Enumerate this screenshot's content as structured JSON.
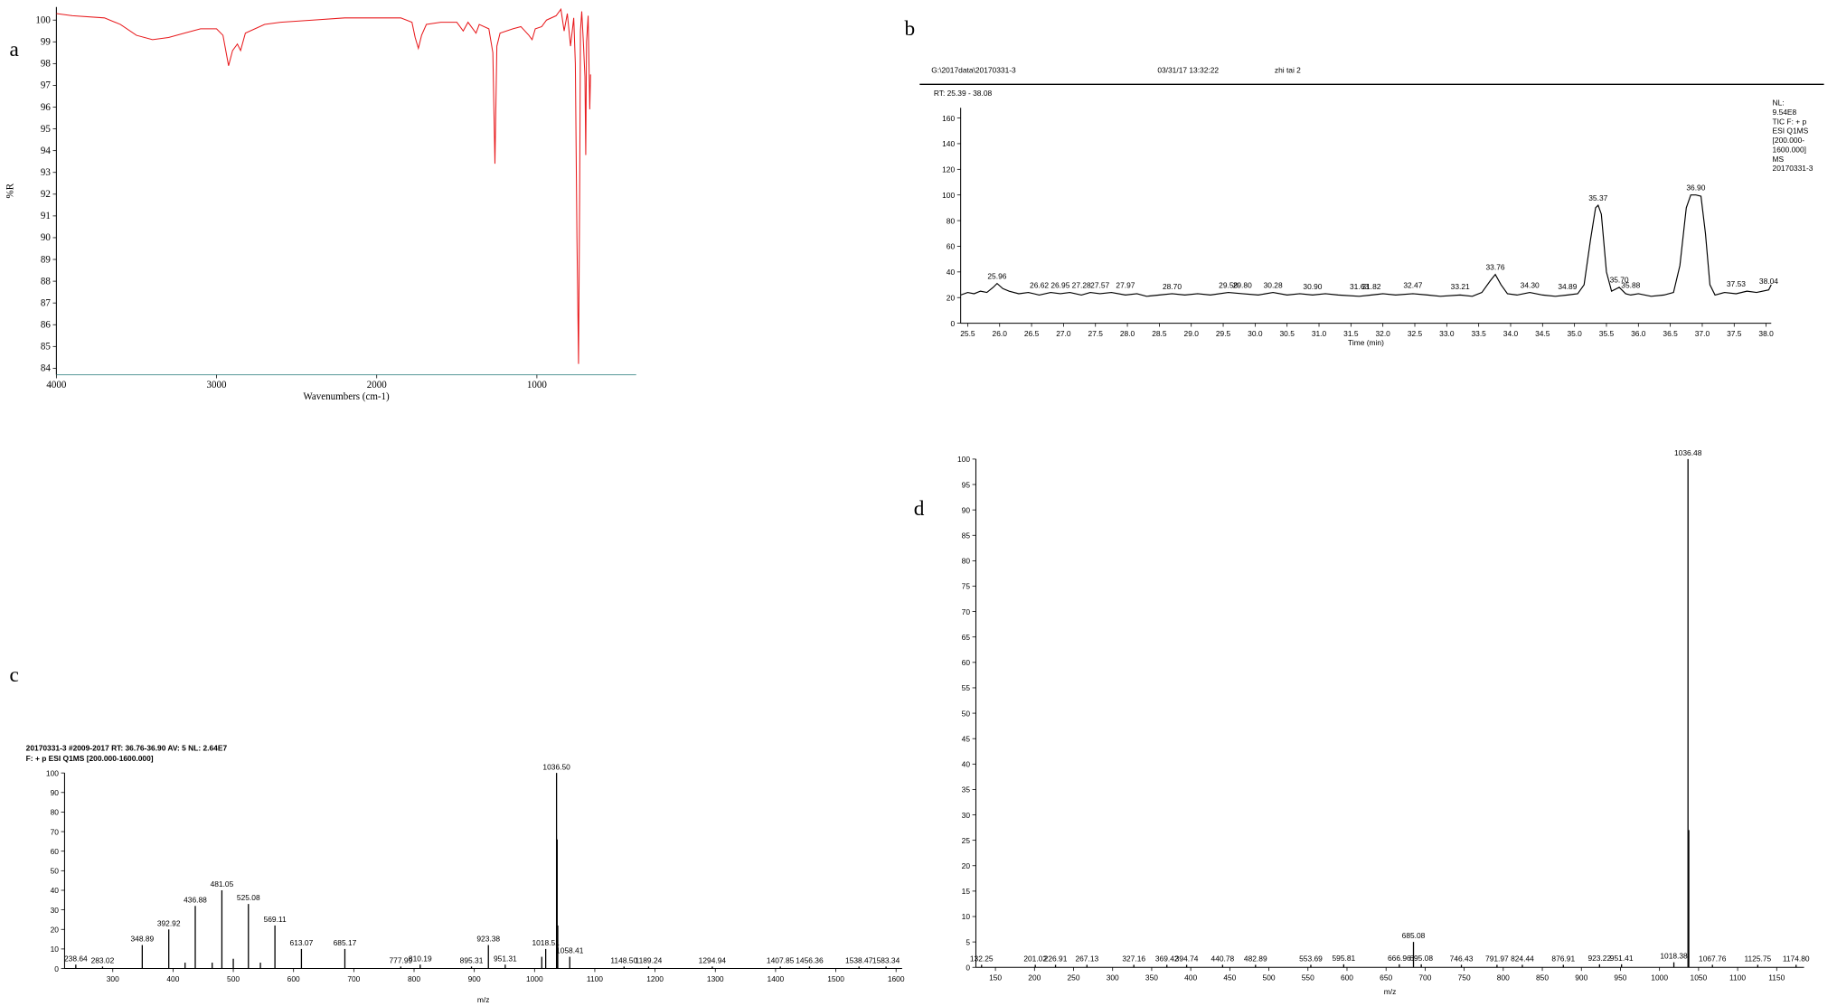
{
  "chart_data": [
    {
      "type": "line",
      "label": "a",
      "x_label": "Wavenumbers (cm-1)",
      "y_label": "%R",
      "color": "#e8191c",
      "x": [
        4000,
        3900,
        3700,
        3600,
        3500,
        3400,
        3300,
        3200,
        3100,
        3000,
        2960,
        2925,
        2900,
        2870,
        2850,
        2820,
        2700,
        2600,
        2400,
        2200,
        2000,
        1850,
        1780,
        1760,
        1740,
        1720,
        1690,
        1600,
        1500,
        1460,
        1430,
        1380,
        1360,
        1300,
        1275,
        1262,
        1250,
        1230,
        1150,
        1100,
        1050,
        1030,
        1010,
        970,
        940,
        880,
        850,
        830,
        810,
        790,
        770,
        760,
        750,
        740,
        733,
        728,
        720,
        710,
        700,
        695,
        690,
        680,
        670,
        665
      ],
      "values": [
        100.3,
        100.2,
        100.1,
        99.8,
        99.3,
        99.1,
        99.2,
        99.4,
        99.6,
        99.6,
        99.3,
        97.9,
        98.6,
        98.9,
        98.6,
        99.4,
        99.8,
        99.9,
        100.0,
        100.1,
        100.1,
        100.1,
        99.9,
        99.2,
        98.7,
        99.3,
        99.8,
        99.9,
        99.9,
        99.5,
        99.9,
        99.4,
        99.8,
        99.6,
        98.5,
        93.4,
        98.8,
        99.4,
        99.6,
        99.7,
        99.3,
        99.1,
        99.6,
        99.7,
        100.0,
        100.2,
        100.5,
        99.5,
        100.3,
        98.8,
        100.1,
        98.0,
        90.0,
        84.2,
        92.0,
        99.5,
        100.4,
        99.0,
        97.4,
        93.8,
        99.0,
        100.2,
        95.9,
        97.5
      ],
      "xlim": [
        4000,
        380
      ],
      "ylim": [
        83.7,
        100.6
      ],
      "xticks": [
        4000,
        3000,
        2000,
        1000
      ],
      "yticks": [
        84,
        85,
        86,
        87,
        88,
        89,
        90,
        91,
        92,
        93,
        94,
        95,
        96,
        97,
        98,
        99,
        100
      ]
    },
    {
      "type": "line",
      "label": "b",
      "header": [
        "G:\\2017data\\20170331-3",
        "03/31/17 13:32:22",
        "zhi tai 2"
      ],
      "range_text": "RT: 25.39 - 38.08",
      "info": [
        "NL:",
        "9.54E8",
        "TIC F: + p",
        "ESI Q1MS",
        "[200.000-",
        "1600.000]",
        "MS",
        "20170331-3"
      ],
      "x_label": "Time (min)",
      "color": "#000000",
      "x": [
        25.39,
        25.5,
        25.6,
        25.7,
        25.8,
        25.9,
        25.96,
        26.05,
        26.15,
        26.3,
        26.45,
        26.62,
        26.8,
        26.95,
        27.1,
        27.28,
        27.42,
        27.57,
        27.75,
        27.97,
        28.15,
        28.3,
        28.5,
        28.7,
        28.9,
        29.1,
        29.3,
        29.58,
        29.8,
        30.05,
        30.28,
        30.5,
        30.7,
        30.9,
        31.1,
        31.3,
        31.63,
        31.82,
        32.0,
        32.2,
        32.47,
        32.7,
        32.9,
        33.21,
        33.4,
        33.55,
        33.68,
        33.76,
        33.85,
        33.95,
        34.1,
        34.3,
        34.5,
        34.7,
        34.89,
        35.05,
        35.15,
        35.25,
        35.33,
        35.37,
        35.42,
        35.5,
        35.58,
        35.7,
        35.8,
        35.88,
        36.0,
        36.2,
        36.4,
        36.55,
        36.65,
        36.75,
        36.82,
        36.9,
        36.98,
        37.05,
        37.12,
        37.2,
        37.35,
        37.53,
        37.7,
        37.85,
        38.04,
        38.08
      ],
      "values": [
        22,
        24,
        23,
        25,
        24,
        28,
        31,
        27,
        25,
        23,
        24,
        22,
        24,
        23,
        24,
        22,
        24,
        23,
        24,
        22,
        23,
        21,
        22,
        23,
        22,
        23,
        22,
        24,
        23,
        22,
        24,
        22,
        23,
        22,
        23,
        22,
        21,
        22,
        23,
        22,
        23,
        22,
        21,
        22,
        21,
        24,
        33,
        38,
        30,
        23,
        22,
        24,
        22,
        21,
        22,
        23,
        30,
        65,
        90,
        92,
        85,
        40,
        25,
        28,
        23,
        22,
        23,
        21,
        22,
        24,
        45,
        90,
        100,
        100,
        99,
        70,
        30,
        22,
        24,
        23,
        25,
        24,
        26,
        30
      ],
      "peaks": [
        {
          "x": 25.96,
          "y": 31,
          "label": "25.96"
        },
        {
          "x": 26.62,
          "y": 24,
          "label": "26.62"
        },
        {
          "x": 26.95,
          "y": 24,
          "label": "26.95"
        },
        {
          "x": 27.28,
          "y": 24,
          "label": "27.28"
        },
        {
          "x": 27.57,
          "y": 24,
          "label": "27.57"
        },
        {
          "x": 27.97,
          "y": 24,
          "label": "27.97"
        },
        {
          "x": 28.7,
          "y": 23,
          "label": "28.70"
        },
        {
          "x": 29.58,
          "y": 24,
          "label": "29.58"
        },
        {
          "x": 29.8,
          "y": 24,
          "label": "29.80"
        },
        {
          "x": 30.28,
          "y": 24,
          "label": "30.28"
        },
        {
          "x": 30.9,
          "y": 23,
          "label": "30.90"
        },
        {
          "x": 31.63,
          "y": 23,
          "label": "31.63"
        },
        {
          "x": 31.82,
          "y": 23,
          "label": "31.82"
        },
        {
          "x": 32.47,
          "y": 24,
          "label": "32.47"
        },
        {
          "x": 33.21,
          "y": 23,
          "label": "33.21"
        },
        {
          "x": 33.76,
          "y": 38,
          "label": "33.76"
        },
        {
          "x": 34.3,
          "y": 24,
          "label": "34.30"
        },
        {
          "x": 34.89,
          "y": 23,
          "label": "34.89"
        },
        {
          "x": 35.37,
          "y": 92,
          "label": "35.37"
        },
        {
          "x": 35.7,
          "y": 28,
          "label": "35.70"
        },
        {
          "x": 35.88,
          "y": 24,
          "label": "35.88"
        },
        {
          "x": 36.9,
          "y": 100,
          "label": "36.90"
        },
        {
          "x": 37.53,
          "y": 25,
          "label": "37.53"
        },
        {
          "x": 38.04,
          "y": 27,
          "label": "38.04"
        }
      ],
      "xlim": [
        25.39,
        38.08
      ],
      "ylim": [
        0,
        168
      ],
      "xticks": [
        25.5,
        {
          "value": 26,
          "label": "26.0"
        },
        26.5,
        {
          "value": 27,
          "label": "27.0"
        },
        27.5,
        {
          "value": 28,
          "label": "28.0"
        },
        28.5,
        {
          "value": 29,
          "label": "29.0"
        },
        29.5,
        {
          "value": 30,
          "label": "30.0"
        },
        30.5,
        {
          "value": 31,
          "label": "31.0"
        },
        31.5,
        {
          "value": 32,
          "label": "32.0"
        },
        32.5,
        {
          "value": 33,
          "label": "33.0"
        },
        33.5,
        {
          "value": 34,
          "label": "34.0"
        },
        34.5,
        {
          "value": 35,
          "label": "35.0"
        },
        35.5,
        {
          "value": 36,
          "label": "36.0"
        },
        36.5,
        {
          "value": 37,
          "label": "37.0"
        },
        37.5,
        {
          "value": 38,
          "label": "38.0"
        }
      ],
      "yticks": [
        0,
        20,
        40,
        60,
        80,
        100,
        120,
        140,
        160
      ]
    },
    {
      "type": "stem",
      "label": "c",
      "header": [
        "20170331-3 #2009-2017  RT: 36.76-36.90  AV: 5  NL: 2.64E7",
        "F: + p ESI Q1MS [200.000-1600.000]"
      ],
      "header_colors": [
        "#2b3bbd",
        "#d0281f"
      ],
      "x_label": "m/z",
      "color": "#000000",
      "x": [
        238.64,
        283.02,
        348.89,
        392.92,
        420,
        436.88,
        465,
        481.05,
        500,
        525.08,
        545,
        569.11,
        613.07,
        685.17,
        777.99,
        810.19,
        895.31,
        923.38,
        951.31,
        1012,
        1018.51,
        1036.5,
        1037.5,
        1038.5,
        1058.41,
        1148.5,
        1189.24,
        1294.94,
        1407.85,
        1456.36,
        1538.47,
        1583.34
      ],
      "values": [
        2,
        1,
        12,
        20,
        3,
        32,
        3,
        40,
        5,
        33,
        3,
        22,
        10,
        10,
        1,
        2,
        1,
        12,
        2,
        6,
        10,
        100,
        66,
        22,
        6,
        1,
        1,
        1,
        1,
        1,
        1,
        1
      ],
      "x_labels": [
        "238.64",
        "283.02",
        "348.89",
        "392.92",
        null,
        "436.88",
        null,
        "481.05",
        null,
        "525.08",
        null,
        "569.11",
        "613.07",
        "685.17",
        "777.99",
        "810.19",
        "895.31",
        "923.38",
        "951.31",
        null,
        "1018.51",
        "1036.50",
        null,
        null,
        "1058.41",
        "1148.50",
        "1189.24",
        "1294.94",
        "1407.85",
        "1456.36",
        "1538.47",
        "1583.34"
      ],
      "xlim": [
        220,
        1610
      ],
      "ylim": [
        0,
        100
      ],
      "xticks": [
        300,
        400,
        500,
        600,
        700,
        800,
        900,
        1000,
        1100,
        1200,
        1300,
        1400,
        1500,
        1600
      ],
      "yticks": [
        0,
        10,
        20,
        30,
        40,
        50,
        60,
        70,
        80,
        90,
        100
      ]
    },
    {
      "type": "stem",
      "label": "d",
      "x_label": "m/z",
      "color": "#000000",
      "x": [
        132.25,
        201.02,
        226.91,
        267.13,
        327.16,
        369.42,
        394.74,
        440.78,
        482.89,
        553.69,
        595.81,
        666.96,
        685.08,
        695.08,
        746.43,
        791.97,
        824.44,
        876.91,
        923.22,
        951.41,
        1018.38,
        1036.48,
        1037.48,
        1067.76,
        1125.75,
        1174.8
      ],
      "values": [
        0.5,
        0.5,
        0.5,
        0.5,
        0.5,
        0.5,
        0.5,
        0.5,
        0.5,
        0.5,
        0.6,
        0.6,
        5,
        0.6,
        0.5,
        0.5,
        0.5,
        0.5,
        0.6,
        0.6,
        1,
        100,
        27,
        0.5,
        0.5,
        0.5
      ],
      "x_labels": [
        "132.25",
        "201.02",
        "226.91",
        "267.13",
        "327.16",
        "369.42",
        "394.74",
        "440.78",
        "482.89",
        "553.69",
        "595.81",
        "666.96",
        "685.08",
        "695.08",
        "746.43",
        "791.97",
        "824.44",
        "876.91",
        "923.22",
        "951.41",
        "1018.38",
        "1036.48",
        null,
        "1067.76",
        "1125.75",
        "1174.80"
      ],
      "xlim": [
        125,
        1185
      ],
      "ylim": [
        0,
        100
      ],
      "xticks": [
        150,
        200,
        250,
        300,
        350,
        400,
        450,
        500,
        550,
        600,
        650,
        700,
        750,
        800,
        850,
        900,
        950,
        1000,
        1050,
        1100,
        1150
      ],
      "yticks": [
        0,
        5,
        10,
        15,
        20,
        25,
        30,
        35,
        40,
        45,
        50,
        55,
        60,
        65,
        70,
        75,
        80,
        85,
        90,
        95,
        100
      ]
    }
  ]
}
